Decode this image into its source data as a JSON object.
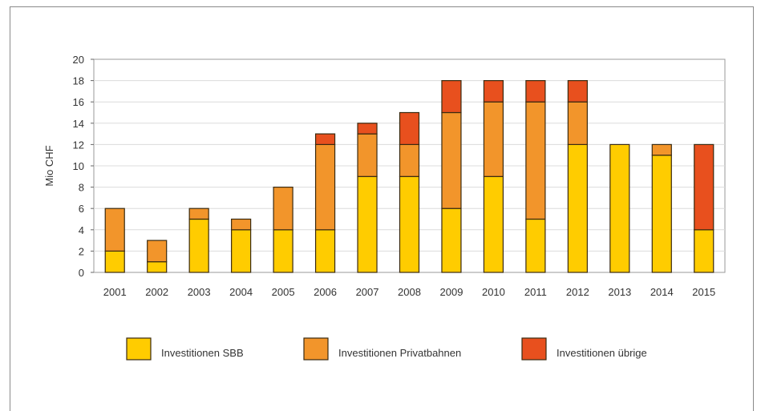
{
  "chart_data": {
    "type": "bar",
    "stacked": true,
    "categories": [
      "2001",
      "2002",
      "2003",
      "2004",
      "2005",
      "2006",
      "2007",
      "2008",
      "2009",
      "2010",
      "2011",
      "2012",
      "2013",
      "2014",
      "2015"
    ],
    "series": [
      {
        "name": "Investitionen SBB",
        "color": "#FFCC00",
        "values": [
          2,
          1,
          5,
          4,
          4,
          4,
          9,
          9,
          6,
          9,
          5,
          12,
          12,
          11,
          4
        ]
      },
      {
        "name": "Investitionen Privatbahnen",
        "color": "#F2952B",
        "values": [
          4,
          2,
          1,
          1,
          4,
          8,
          4,
          3,
          9,
          7,
          11,
          4,
          0,
          1,
          0
        ]
      },
      {
        "name": "Investitionen übrige",
        "color": "#E8501E",
        "values": [
          0,
          0,
          0,
          0,
          0,
          1,
          1,
          3,
          3,
          2,
          2,
          2,
          0,
          0,
          8
        ]
      }
    ],
    "ylabel": "Mio CHF",
    "xlabel": "",
    "ylim": [
      0,
      20
    ],
    "yticks": [
      0,
      2,
      4,
      6,
      8,
      10,
      12,
      14,
      16,
      18,
      20
    ],
    "grid": true,
    "legend_position": "bottom"
  }
}
